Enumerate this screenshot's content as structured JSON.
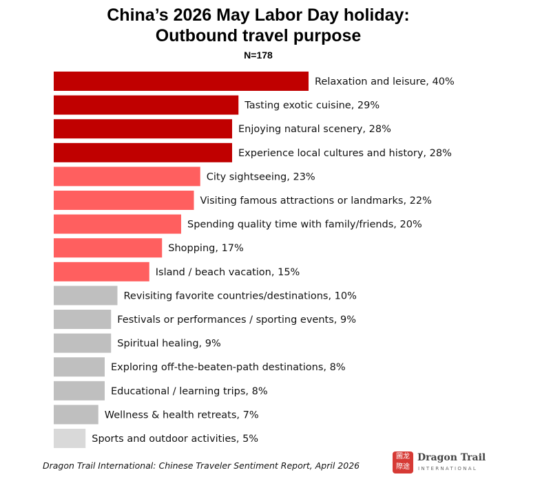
{
  "chart_data": {
    "type": "bar",
    "orientation": "horizontal",
    "title": "China’s 2026 May Labor Day holiday:",
    "title_line2": "Outbound travel purpose",
    "subtitle": "N=178",
    "xlabel": "",
    "ylabel": "",
    "xlim": [
      0,
      40
    ],
    "grid": false,
    "categories": [
      "Relaxation and leisure",
      "Tasting exotic cuisine",
      "Enjoying natural scenery",
      "Experience local cultures and history",
      "City sightseeing",
      "Visiting famous attractions or landmarks",
      "Spending quality time with family/friends",
      "Shopping",
      "Island / beach vacation",
      "Revisiting favorite countries/destinations",
      "Festivals or performances / sporting events",
      "Spiritual healing",
      "Exploring off-the-beaten-path destinations",
      "Educational / learning trips",
      "Wellness & health retreats",
      "Sports and outdoor activities"
    ],
    "values": [
      40,
      29,
      28,
      28,
      23,
      22,
      20,
      17,
      15,
      10,
      9,
      9,
      8,
      8,
      7,
      5
    ],
    "data_labels": [
      "Relaxation and leisure, 40%",
      "Tasting exotic cuisine, 29%",
      "Enjoying natural scenery, 28%",
      "Experience local cultures and history, 28%",
      "City sightseeing, 23%",
      "Visiting famous attractions or landmarks, 22%",
      "Spending quality time with family/friends, 20%",
      "Shopping, 17%",
      "Island / beach vacation, 15%",
      "Revisiting favorite countries/destinations, 10%",
      "Festivals or performances / sporting events, 9%",
      "Spiritual healing, 9%",
      "Exploring off-the-beaten-path destinations, 8%",
      "Educational / learning trips, 8%",
      "Wellness & health retreats, 7%",
      "Sports and outdoor activities, 5%"
    ],
    "colors": [
      "#C00000",
      "#C00000",
      "#C00000",
      "#C00000",
      "#FF5F5F",
      "#FF5F5F",
      "#FF5F5F",
      "#FF5F5F",
      "#FF5F5F",
      "#BFBFBF",
      "#BFBFBF",
      "#BFBFBF",
      "#BFBFBF",
      "#BFBFBF",
      "#BFBFBF",
      "#D9D9D9"
    ]
  },
  "source": "Dragon Trail International: Chinese Traveler Sentiment Report, April 2026",
  "logo": {
    "chars": "龙途 國際",
    "name": "Dragon Trail",
    "sub": "INTERNATIONAL"
  }
}
